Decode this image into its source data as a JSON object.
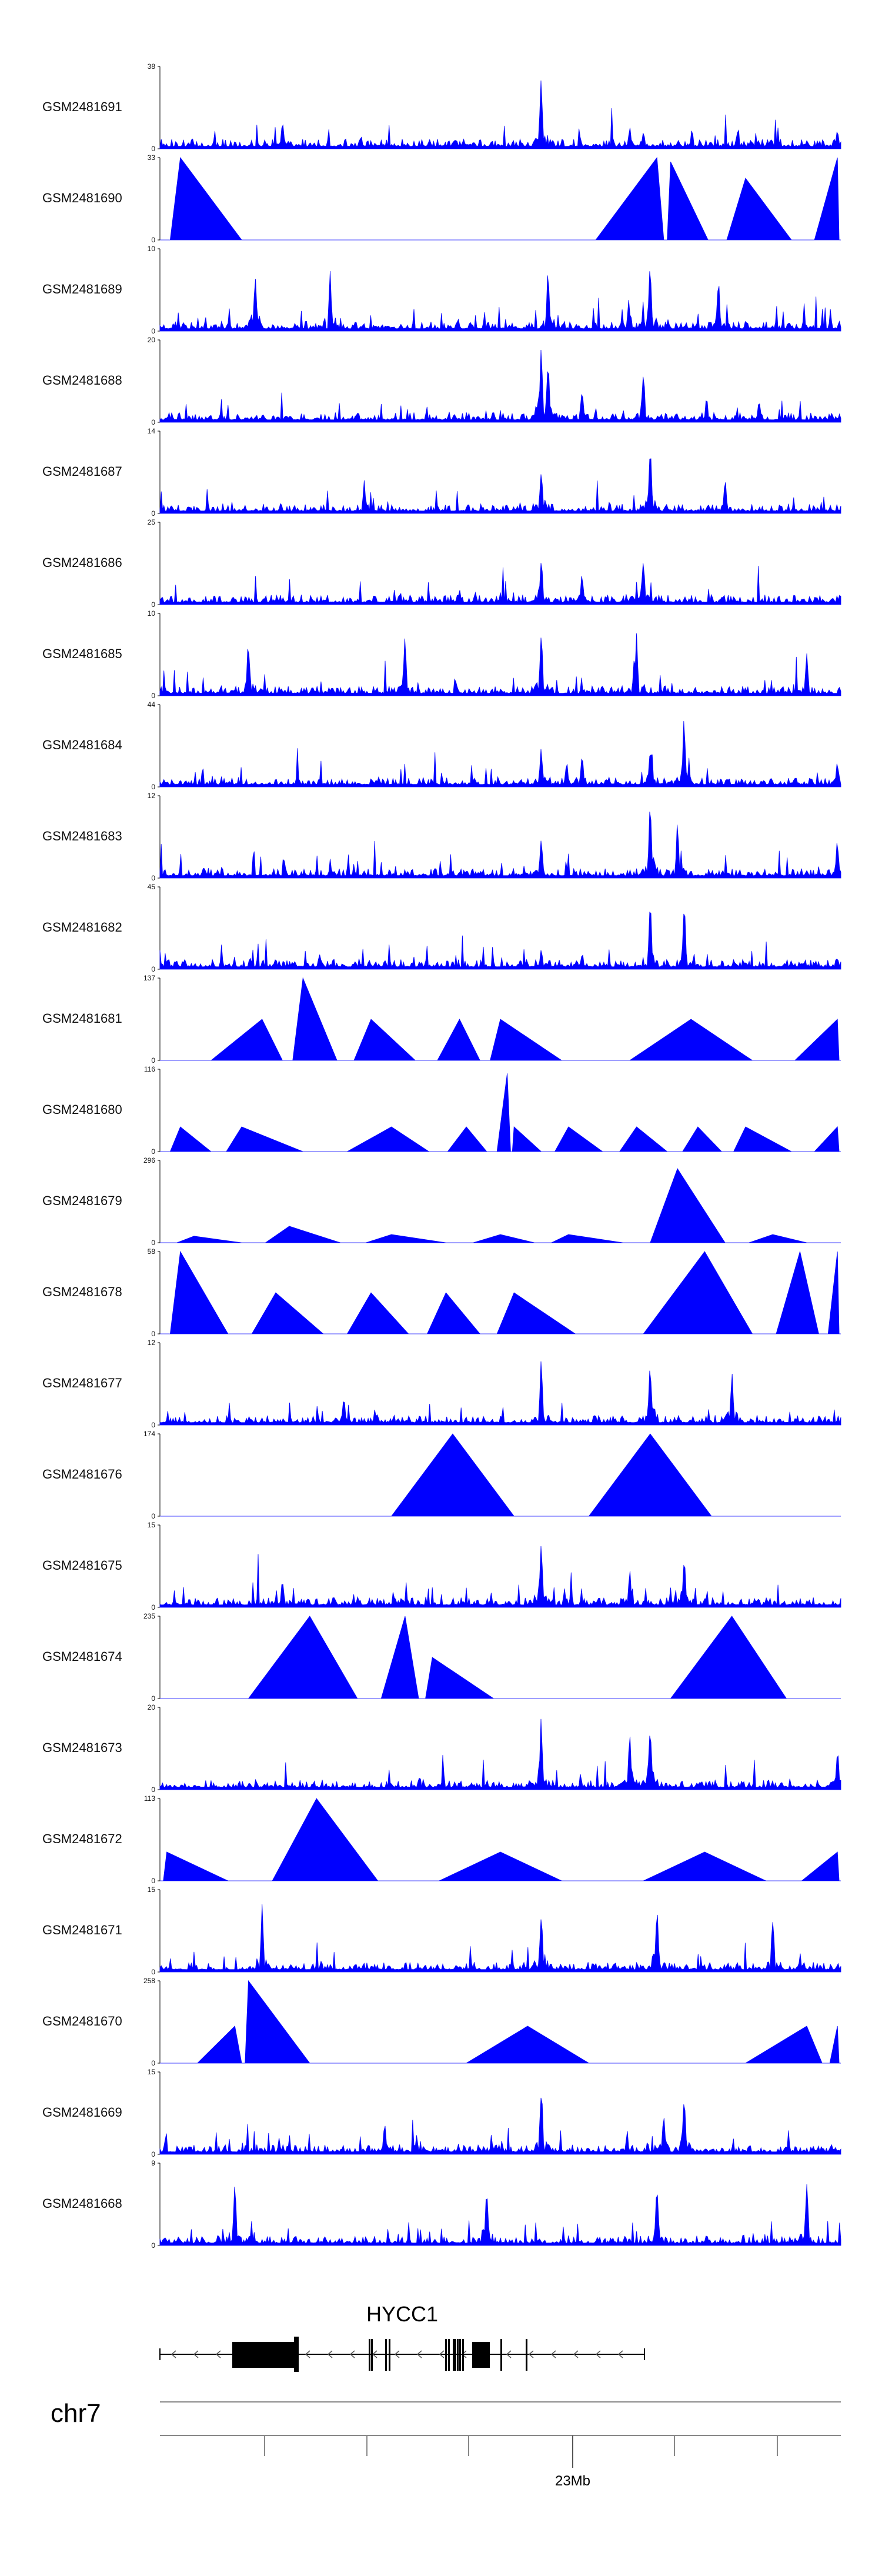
{
  "chart_data": {
    "type": "area",
    "title": "",
    "fill_color": "#0000FF",
    "xlabel": "",
    "ylabel": "",
    "tracks": [
      {
        "name": "GSM2481691",
        "ymax": "38",
        "ymin": "0",
        "peaks": [
          [
            0.56,
            1.0
          ],
          [
            0.18,
            0.38
          ],
          [
            0.69,
            0.3
          ],
          [
            0.71,
            0.28
          ],
          [
            0.995,
            0.3
          ]
        ],
        "spiky": true
      },
      {
        "name": "GSM2481690",
        "ymax": "33",
        "ymin": "0",
        "peaks": [
          [
            0.03,
            1.0
          ],
          [
            0.73,
            1.0
          ],
          [
            0.75,
            0.95
          ],
          [
            0.86,
            0.75
          ],
          [
            0.995,
            1.0
          ]
        ],
        "spiky": false
      },
      {
        "name": "GSM2481689",
        "ymax": "10",
        "ymin": "0",
        "peaks": [
          [
            0.72,
            1.0
          ],
          [
            0.14,
            0.9
          ],
          [
            0.25,
            0.85
          ],
          [
            0.57,
            0.85
          ],
          [
            0.82,
            0.8
          ]
        ],
        "spiky": true
      },
      {
        "name": "GSM2481688",
        "ymax": "20",
        "ymin": "0",
        "peaks": [
          [
            0.56,
            1.0
          ],
          [
            0.57,
            0.9
          ],
          [
            0.62,
            0.55
          ],
          [
            0.71,
            0.7
          ],
          [
            0.88,
            0.35
          ]
        ],
        "spiky": true
      },
      {
        "name": "GSM2481687",
        "ymax": "14",
        "ymin": "0",
        "peaks": [
          [
            0.72,
            1.0
          ],
          [
            0.56,
            0.6
          ],
          [
            0.3,
            0.45
          ],
          [
            0.83,
            0.5
          ]
        ],
        "spiky": true
      },
      {
        "name": "GSM2481686",
        "ymax": "25",
        "ymin": "0",
        "peaks": [
          [
            0.56,
            0.65
          ],
          [
            0.62,
            0.45
          ],
          [
            0.71,
            0.7
          ],
          [
            0.44,
            0.2
          ]
        ],
        "spiky": true
      },
      {
        "name": "GSM2481685",
        "ymax": "10",
        "ymin": "0",
        "peaks": [
          [
            0.56,
            0.9
          ],
          [
            0.7,
            0.85
          ],
          [
            0.13,
            0.8
          ],
          [
            0.36,
            0.8
          ],
          [
            0.95,
            0.6
          ]
        ],
        "spiky": true
      },
      {
        "name": "GSM2481684",
        "ymax": "44",
        "ymin": "0",
        "peaks": [
          [
            0.77,
            1.0
          ],
          [
            0.56,
            0.55
          ],
          [
            0.62,
            0.45
          ],
          [
            0.72,
            0.55
          ],
          [
            0.995,
            0.35
          ]
        ],
        "spiky": true
      },
      {
        "name": "GSM2481683",
        "ymax": "12",
        "ymin": "0",
        "peaks": [
          [
            0.72,
            1.0
          ],
          [
            0.76,
            0.75
          ],
          [
            0.56,
            0.55
          ],
          [
            0.995,
            0.55
          ]
        ],
        "spiky": true
      },
      {
        "name": "GSM2481682",
        "ymax": "45",
        "ymin": "0",
        "peaks": [
          [
            0.72,
            1.0
          ],
          [
            0.77,
            0.9
          ],
          [
            0.56,
            0.3
          ],
          [
            0.62,
            0.25
          ],
          [
            0.995,
            0.2
          ]
        ],
        "spiky": true
      },
      {
        "name": "GSM2481681",
        "ymax": "137",
        "ymin": "0",
        "peaks": [
          [
            0.15,
            0.5
          ],
          [
            0.21,
            1.0
          ],
          [
            0.31,
            0.5
          ],
          [
            0.44,
            0.5
          ],
          [
            0.5,
            0.5
          ],
          [
            0.78,
            0.5
          ],
          [
            0.995,
            0.5
          ]
        ],
        "spiky": false
      },
      {
        "name": "GSM2481680",
        "ymax": "116",
        "ymin": "0",
        "peaks": [
          [
            0.03,
            0.3
          ],
          [
            0.12,
            0.3
          ],
          [
            0.34,
            0.3
          ],
          [
            0.45,
            0.3
          ],
          [
            0.52,
            0.3
          ],
          [
            0.51,
            0.95
          ],
          [
            0.6,
            0.3
          ],
          [
            0.7,
            0.3
          ],
          [
            0.79,
            0.3
          ],
          [
            0.86,
            0.3
          ],
          [
            0.995,
            0.3
          ]
        ],
        "spiky": false
      },
      {
        "name": "GSM2481679",
        "ymax": "296",
        "ymin": "0",
        "peaks": [
          [
            0.05,
            0.08
          ],
          [
            0.19,
            0.2
          ],
          [
            0.76,
            0.9
          ],
          [
            0.34,
            0.1
          ],
          [
            0.5,
            0.1
          ],
          [
            0.6,
            0.1
          ],
          [
            0.9,
            0.1
          ]
        ],
        "spiky": false
      },
      {
        "name": "GSM2481678",
        "ymax": "58",
        "ymin": "0",
        "peaks": [
          [
            0.03,
            1.0
          ],
          [
            0.17,
            0.5
          ],
          [
            0.31,
            0.5
          ],
          [
            0.42,
            0.5
          ],
          [
            0.52,
            0.5
          ],
          [
            0.8,
            1.0
          ],
          [
            0.94,
            1.0
          ],
          [
            0.995,
            1.0
          ]
        ],
        "spiky": false
      },
      {
        "name": "GSM2481677",
        "ymax": "12",
        "ymin": "0",
        "peaks": [
          [
            0.56,
            1.0
          ],
          [
            0.72,
            0.95
          ],
          [
            0.84,
            0.75
          ],
          [
            0.27,
            0.45
          ]
        ],
        "spiky": true
      },
      {
        "name": "GSM2481676",
        "ymax": "174",
        "ymin": "0",
        "peaks": [
          [
            0.43,
            1.0
          ],
          [
            0.72,
            1.0
          ]
        ],
        "spiky": false
      },
      {
        "name": "GSM2481675",
        "ymax": "15",
        "ymin": "0",
        "peaks": [
          [
            0.56,
            1.0
          ],
          [
            0.77,
            0.8
          ],
          [
            0.69,
            0.5
          ],
          [
            0.18,
            0.4
          ]
        ],
        "spiky": true
      },
      {
        "name": "GSM2481674",
        "ymax": "235",
        "ymin": "0",
        "peaks": [
          [
            0.22,
            1.0
          ],
          [
            0.36,
            1.0
          ],
          [
            0.4,
            0.5
          ],
          [
            0.84,
            1.0
          ]
        ],
        "spiky": false
      },
      {
        "name": "GSM2481673",
        "ymax": "20",
        "ymin": "0",
        "peaks": [
          [
            0.56,
            1.0
          ],
          [
            0.72,
            1.0
          ],
          [
            0.69,
            0.8
          ],
          [
            0.995,
            0.6
          ]
        ],
        "spiky": true
      },
      {
        "name": "GSM2481672",
        "ymax": "113",
        "ymin": "0",
        "peaks": [
          [
            0.23,
            1.0
          ],
          [
            0.01,
            0.35
          ],
          [
            0.5,
            0.35
          ],
          [
            0.8,
            0.35
          ],
          [
            0.995,
            0.35
          ]
        ],
        "spiky": false
      },
      {
        "name": "GSM2481671",
        "ymax": "15",
        "ymin": "0",
        "peaks": [
          [
            0.56,
            0.9
          ],
          [
            0.73,
            0.95
          ],
          [
            0.15,
            0.85
          ],
          [
            0.9,
            0.8
          ]
        ],
        "spiky": true
      },
      {
        "name": "GSM2481670",
        "ymax": "258",
        "ymin": "0",
        "peaks": [
          [
            0.13,
            1.0
          ],
          [
            0.11,
            0.45
          ],
          [
            0.54,
            0.45
          ],
          [
            0.95,
            0.45
          ],
          [
            0.995,
            0.45
          ]
        ],
        "spiky": false
      },
      {
        "name": "GSM2481669",
        "ymax": "15",
        "ymin": "0",
        "peaks": [
          [
            0.56,
            1.0
          ],
          [
            0.77,
            0.9
          ],
          [
            0.33,
            0.45
          ],
          [
            0.74,
            0.55
          ]
        ],
        "spiky": true
      },
      {
        "name": "GSM2481668",
        "ymax": "9",
        "ymin": "0",
        "peaks": [
          [
            0.73,
            1.0
          ],
          [
            0.95,
            0.9
          ],
          [
            0.11,
            0.85
          ],
          [
            0.48,
            0.85
          ]
        ],
        "spiky": true
      }
    ],
    "gene": {
      "name": "HYCC1",
      "strand": "-"
    },
    "chromosome": "chr7",
    "scale_label": "23Mb"
  }
}
